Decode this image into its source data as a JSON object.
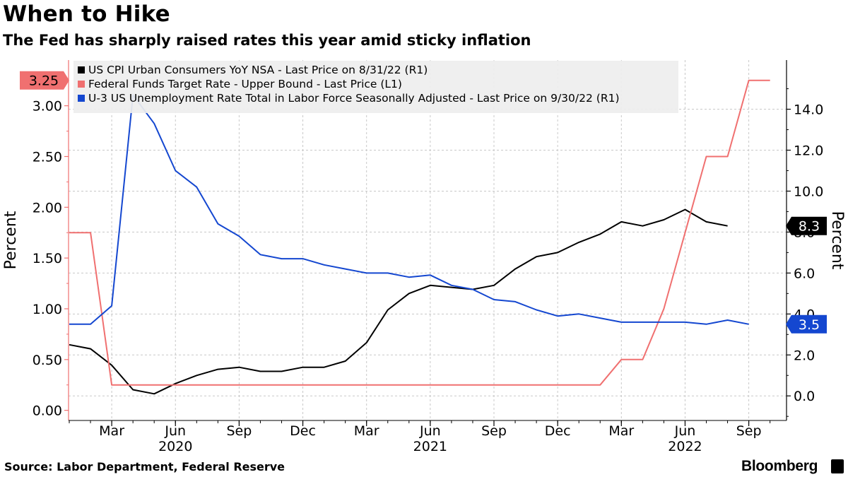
{
  "header": {
    "title": "When to Hike",
    "subtitle": "The Fed has sharply raised rates this year amid sticky inflation"
  },
  "footer": {
    "source": "Source: Labor Department, Federal Reserve",
    "brand": "Bloomberg"
  },
  "chart_data": {
    "type": "line",
    "title": "When to Hike",
    "subtitle": "The Fed has sharply raised rates this year amid sticky inflation",
    "x_start": "2020-01",
    "x_ticks": [
      {
        "label": "Mar",
        "index": 2
      },
      {
        "label": "Jun",
        "index": 5
      },
      {
        "label": "Sep",
        "index": 8
      },
      {
        "label": "Dec",
        "index": 11
      },
      {
        "label": "Mar",
        "index": 14
      },
      {
        "label": "Jun",
        "index": 17
      },
      {
        "label": "Sep",
        "index": 20
      },
      {
        "label": "Dec",
        "index": 23
      },
      {
        "label": "Mar",
        "index": 26
      },
      {
        "label": "Jun",
        "index": 29
      },
      {
        "label": "Sep",
        "index": 32
      }
    ],
    "year_labels": [
      {
        "label": "2020",
        "index": 5
      },
      {
        "label": "2021",
        "index": 17
      },
      {
        "label": "2022",
        "index": 29
      }
    ],
    "left_axis": {
      "label": "Percent",
      "ylim": [
        -0.1,
        3.45
      ],
      "ticks": [
        "3.00",
        "2.50",
        "2.00",
        "1.50",
        "1.00",
        "0.50",
        "0.00"
      ],
      "tick_values": [
        3.0,
        2.5,
        2.0,
        1.5,
        1.0,
        0.5,
        0.0
      ]
    },
    "right_axis": {
      "label": "Percent",
      "ylim": [
        -1.2,
        16.4
      ],
      "ticks": [
        "14.0",
        "12.0",
        "10.0",
        "8.0",
        "6.0",
        "4.0",
        "2.0",
        "0.0"
      ],
      "tick_values": [
        14.0,
        12.0,
        10.0,
        8.0,
        6.0,
        4.0,
        2.0,
        0.0
      ]
    },
    "series": [
      {
        "name": "US CPI Urban Consumers YoY NSA - Last Price on 8/31/22 (R1)",
        "axis": "right",
        "color": "#000000",
        "start_index": 0,
        "values": [
          2.5,
          2.3,
          1.5,
          0.3,
          0.1,
          0.6,
          1.0,
          1.3,
          1.4,
          1.2,
          1.2,
          1.4,
          1.4,
          1.7,
          2.6,
          4.2,
          5.0,
          5.4,
          5.3,
          5.2,
          5.4,
          6.2,
          6.8,
          7.0,
          7.5,
          7.9,
          8.5,
          8.3,
          8.6,
          9.1,
          8.5,
          8.3
        ],
        "last_label": "8.3"
      },
      {
        "name": "Federal Funds Target Rate - Upper Bound - Last Price (L1)",
        "axis": "left",
        "color": "#f07070",
        "start_index": 0,
        "values": [
          1.75,
          1.75,
          0.25,
          0.25,
          0.25,
          0.25,
          0.25,
          0.25,
          0.25,
          0.25,
          0.25,
          0.25,
          0.25,
          0.25,
          0.25,
          0.25,
          0.25,
          0.25,
          0.25,
          0.25,
          0.25,
          0.25,
          0.25,
          0.25,
          0.25,
          0.25,
          0.5,
          0.5,
          1.0,
          1.75,
          2.5,
          2.5,
          3.25,
          3.25
        ],
        "last_label": "3.25"
      },
      {
        "name": "U-3 US Unemployment Rate Total in Labor Force Seasonally Adjusted - Last Price on 9/30/22 (R1)",
        "axis": "right",
        "color": "#1447d0",
        "start_index": 0,
        "values": [
          3.5,
          3.5,
          4.4,
          14.7,
          13.3,
          11.0,
          10.2,
          8.4,
          7.8,
          6.9,
          6.7,
          6.7,
          6.4,
          6.2,
          6.0,
          6.0,
          5.8,
          5.9,
          5.4,
          5.2,
          4.7,
          4.6,
          4.2,
          3.9,
          4.0,
          3.8,
          3.6,
          3.6,
          3.6,
          3.6,
          3.5,
          3.7,
          3.5
        ],
        "last_label": "3.5"
      }
    ]
  }
}
